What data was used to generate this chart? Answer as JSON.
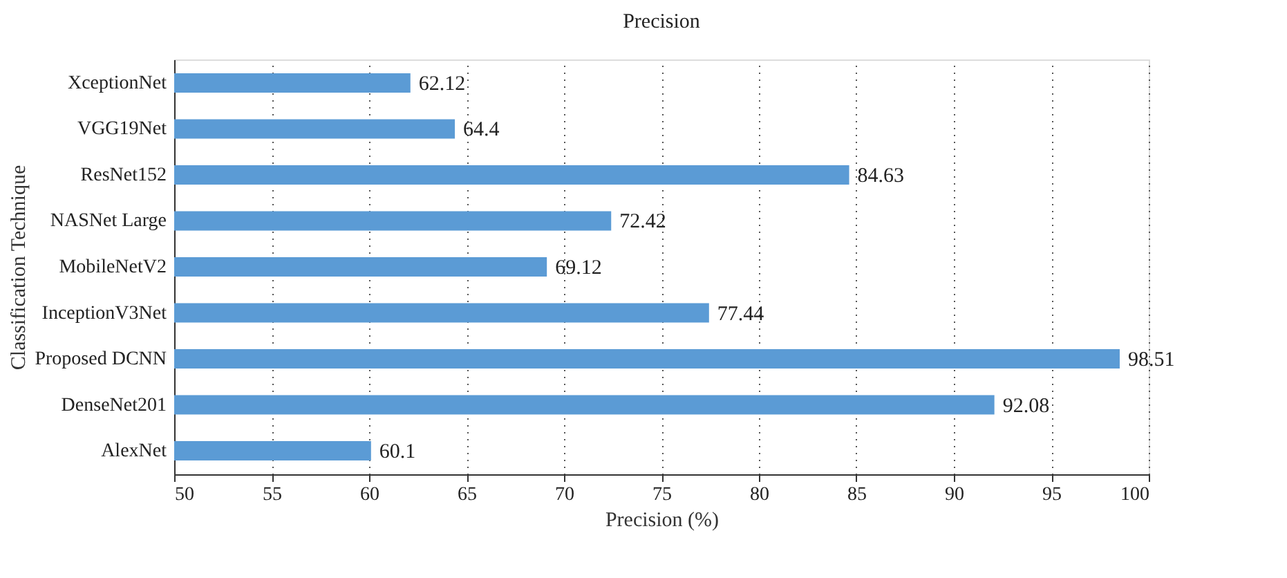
{
  "chart_data": {
    "type": "bar",
    "orientation": "horizontal",
    "title": "Precision",
    "xlabel": "Precision (%)",
    "ylabel": "Classification Technique",
    "categories": [
      "XceptionNet",
      "VGG19Net",
      "ResNet152",
      "NASNet Large",
      "MobileNetV2",
      "InceptionV3Net",
      "Proposed DCNN",
      "DenseNet201",
      "AlexNet"
    ],
    "values": [
      62.12,
      64.4,
      84.63,
      72.42,
      69.12,
      77.44,
      98.51,
      92.08,
      60.1
    ],
    "color": "#5b9bd5",
    "xlim": [
      50,
      100
    ],
    "xticks": [
      50,
      55,
      60,
      65,
      70,
      75,
      80,
      85,
      90,
      95,
      100
    ],
    "grid": "x",
    "data_labels": true
  }
}
